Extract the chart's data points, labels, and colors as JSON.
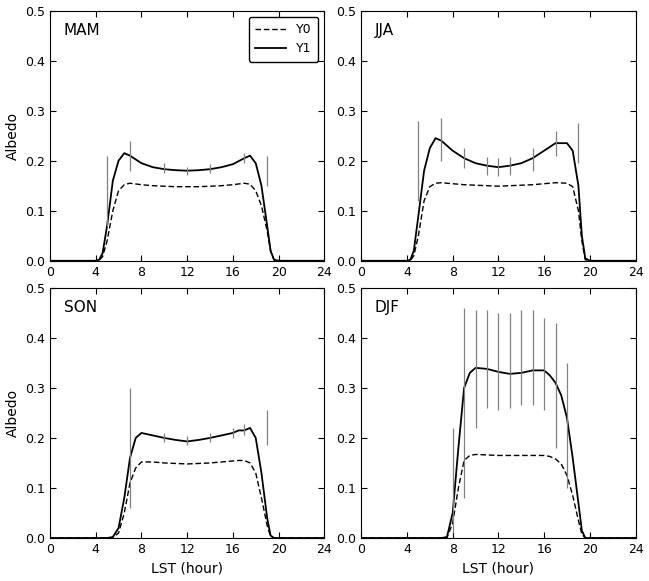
{
  "seasons": [
    "MAM",
    "JJA",
    "SON",
    "DJF"
  ],
  "Y1": {
    "MAM": [
      [
        0,
        0
      ],
      [
        1,
        0
      ],
      [
        2,
        0
      ],
      [
        3,
        0
      ],
      [
        4,
        0
      ],
      [
        4.3,
        0.002
      ],
      [
        4.6,
        0.015
      ],
      [
        5.0,
        0.07
      ],
      [
        5.5,
        0.16
      ],
      [
        6.0,
        0.2
      ],
      [
        6.5,
        0.215
      ],
      [
        7.0,
        0.21
      ],
      [
        8,
        0.195
      ],
      [
        9,
        0.187
      ],
      [
        10,
        0.183
      ],
      [
        11,
        0.181
      ],
      [
        12,
        0.18
      ],
      [
        13,
        0.181
      ],
      [
        14,
        0.183
      ],
      [
        15,
        0.187
      ],
      [
        16,
        0.193
      ],
      [
        17,
        0.205
      ],
      [
        17.5,
        0.21
      ],
      [
        18,
        0.195
      ],
      [
        18.5,
        0.15
      ],
      [
        19,
        0.07
      ],
      [
        19.3,
        0.02
      ],
      [
        19.6,
        0.002
      ],
      [
        20,
        0
      ],
      [
        21,
        0
      ],
      [
        22,
        0
      ],
      [
        23,
        0
      ],
      [
        24,
        0
      ]
    ],
    "JJA": [
      [
        0,
        0
      ],
      [
        1,
        0
      ],
      [
        2,
        0
      ],
      [
        3,
        0
      ],
      [
        4,
        0
      ],
      [
        4.3,
        0.002
      ],
      [
        4.6,
        0.02
      ],
      [
        5.0,
        0.09
      ],
      [
        5.5,
        0.18
      ],
      [
        6.0,
        0.225
      ],
      [
        6.5,
        0.245
      ],
      [
        7.0,
        0.24
      ],
      [
        8,
        0.22
      ],
      [
        9,
        0.205
      ],
      [
        10,
        0.195
      ],
      [
        11,
        0.19
      ],
      [
        12,
        0.187
      ],
      [
        13,
        0.19
      ],
      [
        14,
        0.195
      ],
      [
        15,
        0.205
      ],
      [
        16,
        0.22
      ],
      [
        17,
        0.235
      ],
      [
        18,
        0.235
      ],
      [
        18.5,
        0.22
      ],
      [
        19,
        0.15
      ],
      [
        19.3,
        0.05
      ],
      [
        19.6,
        0.005
      ],
      [
        20,
        0
      ],
      [
        21,
        0
      ],
      [
        22,
        0
      ],
      [
        23,
        0
      ],
      [
        24,
        0
      ]
    ],
    "SON": [
      [
        0,
        0
      ],
      [
        1,
        0
      ],
      [
        2,
        0
      ],
      [
        3,
        0
      ],
      [
        4,
        0
      ],
      [
        5,
        0
      ],
      [
        5.5,
        0.002
      ],
      [
        6.0,
        0.02
      ],
      [
        6.5,
        0.08
      ],
      [
        7.0,
        0.16
      ],
      [
        7.5,
        0.2
      ],
      [
        8,
        0.21
      ],
      [
        9,
        0.205
      ],
      [
        10,
        0.2
      ],
      [
        11,
        0.196
      ],
      [
        12,
        0.193
      ],
      [
        13,
        0.196
      ],
      [
        14,
        0.2
      ],
      [
        15,
        0.205
      ],
      [
        16,
        0.21
      ],
      [
        16.5,
        0.215
      ],
      [
        17.0,
        0.215
      ],
      [
        17.5,
        0.22
      ],
      [
        18,
        0.2
      ],
      [
        18.5,
        0.13
      ],
      [
        19,
        0.04
      ],
      [
        19.3,
        0.005
      ],
      [
        19.6,
        0
      ],
      [
        20,
        0
      ],
      [
        21,
        0
      ],
      [
        22,
        0
      ],
      [
        23,
        0
      ],
      [
        24,
        0
      ]
    ],
    "DJF": [
      [
        0,
        0
      ],
      [
        1,
        0
      ],
      [
        2,
        0
      ],
      [
        3,
        0
      ],
      [
        4,
        0
      ],
      [
        5,
        0
      ],
      [
        6,
        0
      ],
      [
        7,
        0
      ],
      [
        7.5,
        0.002
      ],
      [
        8.0,
        0.05
      ],
      [
        8.5,
        0.18
      ],
      [
        9.0,
        0.3
      ],
      [
        9.5,
        0.33
      ],
      [
        10,
        0.34
      ],
      [
        11,
        0.338
      ],
      [
        12,
        0.332
      ],
      [
        13,
        0.328
      ],
      [
        14,
        0.33
      ],
      [
        15,
        0.335
      ],
      [
        16,
        0.335
      ],
      [
        16.5,
        0.325
      ],
      [
        17,
        0.31
      ],
      [
        17.5,
        0.285
      ],
      [
        18,
        0.24
      ],
      [
        18.5,
        0.16
      ],
      [
        19,
        0.07
      ],
      [
        19.3,
        0.015
      ],
      [
        19.6,
        0
      ],
      [
        20,
        0
      ],
      [
        21,
        0
      ],
      [
        22,
        0
      ],
      [
        23,
        0
      ],
      [
        24,
        0
      ]
    ]
  },
  "Y0": {
    "MAM": [
      [
        0,
        0
      ],
      [
        1,
        0
      ],
      [
        2,
        0
      ],
      [
        3,
        0
      ],
      [
        4,
        0
      ],
      [
        4.3,
        0.001
      ],
      [
        4.6,
        0.008
      ],
      [
        5.0,
        0.04
      ],
      [
        5.5,
        0.1
      ],
      [
        6.0,
        0.14
      ],
      [
        6.5,
        0.152
      ],
      [
        7.0,
        0.155
      ],
      [
        8,
        0.152
      ],
      [
        9,
        0.15
      ],
      [
        10,
        0.149
      ],
      [
        11,
        0.148
      ],
      [
        12,
        0.148
      ],
      [
        13,
        0.148
      ],
      [
        14,
        0.149
      ],
      [
        15,
        0.15
      ],
      [
        16,
        0.152
      ],
      [
        17,
        0.155
      ],
      [
        17.5,
        0.153
      ],
      [
        18,
        0.14
      ],
      [
        18.5,
        0.11
      ],
      [
        19,
        0.06
      ],
      [
        19.3,
        0.02
      ],
      [
        19.6,
        0.002
      ],
      [
        20,
        0
      ],
      [
        21,
        0
      ],
      [
        22,
        0
      ],
      [
        23,
        0
      ],
      [
        24,
        0
      ]
    ],
    "JJA": [
      [
        0,
        0
      ],
      [
        1,
        0
      ],
      [
        2,
        0
      ],
      [
        3,
        0
      ],
      [
        4,
        0
      ],
      [
        4.3,
        0.001
      ],
      [
        4.6,
        0.01
      ],
      [
        5.0,
        0.05
      ],
      [
        5.5,
        0.12
      ],
      [
        6.0,
        0.148
      ],
      [
        6.5,
        0.155
      ],
      [
        7.0,
        0.156
      ],
      [
        8,
        0.154
      ],
      [
        9,
        0.152
      ],
      [
        10,
        0.151
      ],
      [
        11,
        0.15
      ],
      [
        12,
        0.149
      ],
      [
        13,
        0.15
      ],
      [
        14,
        0.151
      ],
      [
        15,
        0.152
      ],
      [
        16,
        0.154
      ],
      [
        17,
        0.156
      ],
      [
        18,
        0.155
      ],
      [
        18.5,
        0.148
      ],
      [
        19,
        0.1
      ],
      [
        19.3,
        0.04
      ],
      [
        19.6,
        0.002
      ],
      [
        20,
        0
      ],
      [
        21,
        0
      ],
      [
        22,
        0
      ],
      [
        23,
        0
      ],
      [
        24,
        0
      ]
    ],
    "SON": [
      [
        0,
        0
      ],
      [
        1,
        0
      ],
      [
        2,
        0
      ],
      [
        3,
        0
      ],
      [
        4,
        0
      ],
      [
        5,
        0
      ],
      [
        5.5,
        0.001
      ],
      [
        6.0,
        0.01
      ],
      [
        6.5,
        0.05
      ],
      [
        7.0,
        0.11
      ],
      [
        7.5,
        0.14
      ],
      [
        8,
        0.152
      ],
      [
        9,
        0.152
      ],
      [
        10,
        0.15
      ],
      [
        11,
        0.149
      ],
      [
        12,
        0.148
      ],
      [
        13,
        0.149
      ],
      [
        14,
        0.15
      ],
      [
        15,
        0.152
      ],
      [
        16,
        0.154
      ],
      [
        16.5,
        0.155
      ],
      [
        17.0,
        0.155
      ],
      [
        17.5,
        0.15
      ],
      [
        18,
        0.13
      ],
      [
        18.5,
        0.08
      ],
      [
        19,
        0.025
      ],
      [
        19.3,
        0.003
      ],
      [
        19.6,
        0
      ],
      [
        20,
        0
      ],
      [
        21,
        0
      ],
      [
        22,
        0
      ],
      [
        23,
        0
      ],
      [
        24,
        0
      ]
    ],
    "DJF": [
      [
        0,
        0
      ],
      [
        1,
        0
      ],
      [
        2,
        0
      ],
      [
        3,
        0
      ],
      [
        4,
        0
      ],
      [
        5,
        0
      ],
      [
        6,
        0
      ],
      [
        7,
        0
      ],
      [
        7.5,
        0.001
      ],
      [
        8.0,
        0.03
      ],
      [
        8.5,
        0.1
      ],
      [
        9.0,
        0.155
      ],
      [
        9.5,
        0.165
      ],
      [
        10,
        0.167
      ],
      [
        11,
        0.166
      ],
      [
        12,
        0.165
      ],
      [
        13,
        0.165
      ],
      [
        14,
        0.165
      ],
      [
        15,
        0.165
      ],
      [
        16,
        0.165
      ],
      [
        16.5,
        0.163
      ],
      [
        17,
        0.158
      ],
      [
        17.5,
        0.148
      ],
      [
        18,
        0.125
      ],
      [
        18.5,
        0.085
      ],
      [
        19,
        0.035
      ],
      [
        19.3,
        0.008
      ],
      [
        19.6,
        0
      ],
      [
        20,
        0
      ],
      [
        21,
        0
      ],
      [
        22,
        0
      ],
      [
        23,
        0
      ],
      [
        24,
        0
      ]
    ]
  },
  "std_bars": {
    "MAM": {
      "hours": [
        5,
        7,
        10,
        12,
        14,
        17,
        19
      ],
      "bottom": [
        0.07,
        0.18,
        0.175,
        0.172,
        0.175,
        0.195,
        0.15
      ],
      "top": [
        0.21,
        0.24,
        0.195,
        0.188,
        0.193,
        0.215,
        0.21
      ]
    },
    "JJA": {
      "hours": [
        5,
        7,
        9,
        11,
        12,
        13,
        15,
        17,
        19
      ],
      "bottom": [
        0.12,
        0.2,
        0.185,
        0.172,
        0.169,
        0.172,
        0.18,
        0.21,
        0.195
      ],
      "top": [
        0.28,
        0.285,
        0.225,
        0.208,
        0.205,
        0.208,
        0.225,
        0.26,
        0.275
      ]
    },
    "SON": {
      "hours": [
        7,
        10,
        12,
        14,
        16,
        17,
        19
      ],
      "bottom": [
        0.06,
        0.192,
        0.185,
        0.192,
        0.2,
        0.205,
        0.185
      ],
      "top": [
        0.3,
        0.21,
        0.203,
        0.21,
        0.22,
        0.228,
        0.255
      ]
    },
    "DJF": {
      "hours": [
        8,
        9,
        10,
        11,
        12,
        13,
        14,
        15,
        16,
        17,
        18
      ],
      "bottom": [
        0.01,
        0.08,
        0.22,
        0.26,
        0.255,
        0.26,
        0.265,
        0.265,
        0.255,
        0.18,
        0.1
      ],
      "top": [
        0.22,
        0.46,
        0.455,
        0.455,
        0.45,
        0.45,
        0.455,
        0.455,
        0.44,
        0.43,
        0.35
      ]
    }
  },
  "xlim": [
    0,
    24
  ],
  "ylim": [
    0,
    0.5
  ],
  "xticks": [
    0,
    4,
    8,
    12,
    16,
    20,
    24
  ],
  "yticks": [
    0,
    0.1,
    0.2,
    0.3,
    0.4,
    0.5
  ],
  "xlabel": "LST (hour)",
  "ylabel": "Albedo"
}
